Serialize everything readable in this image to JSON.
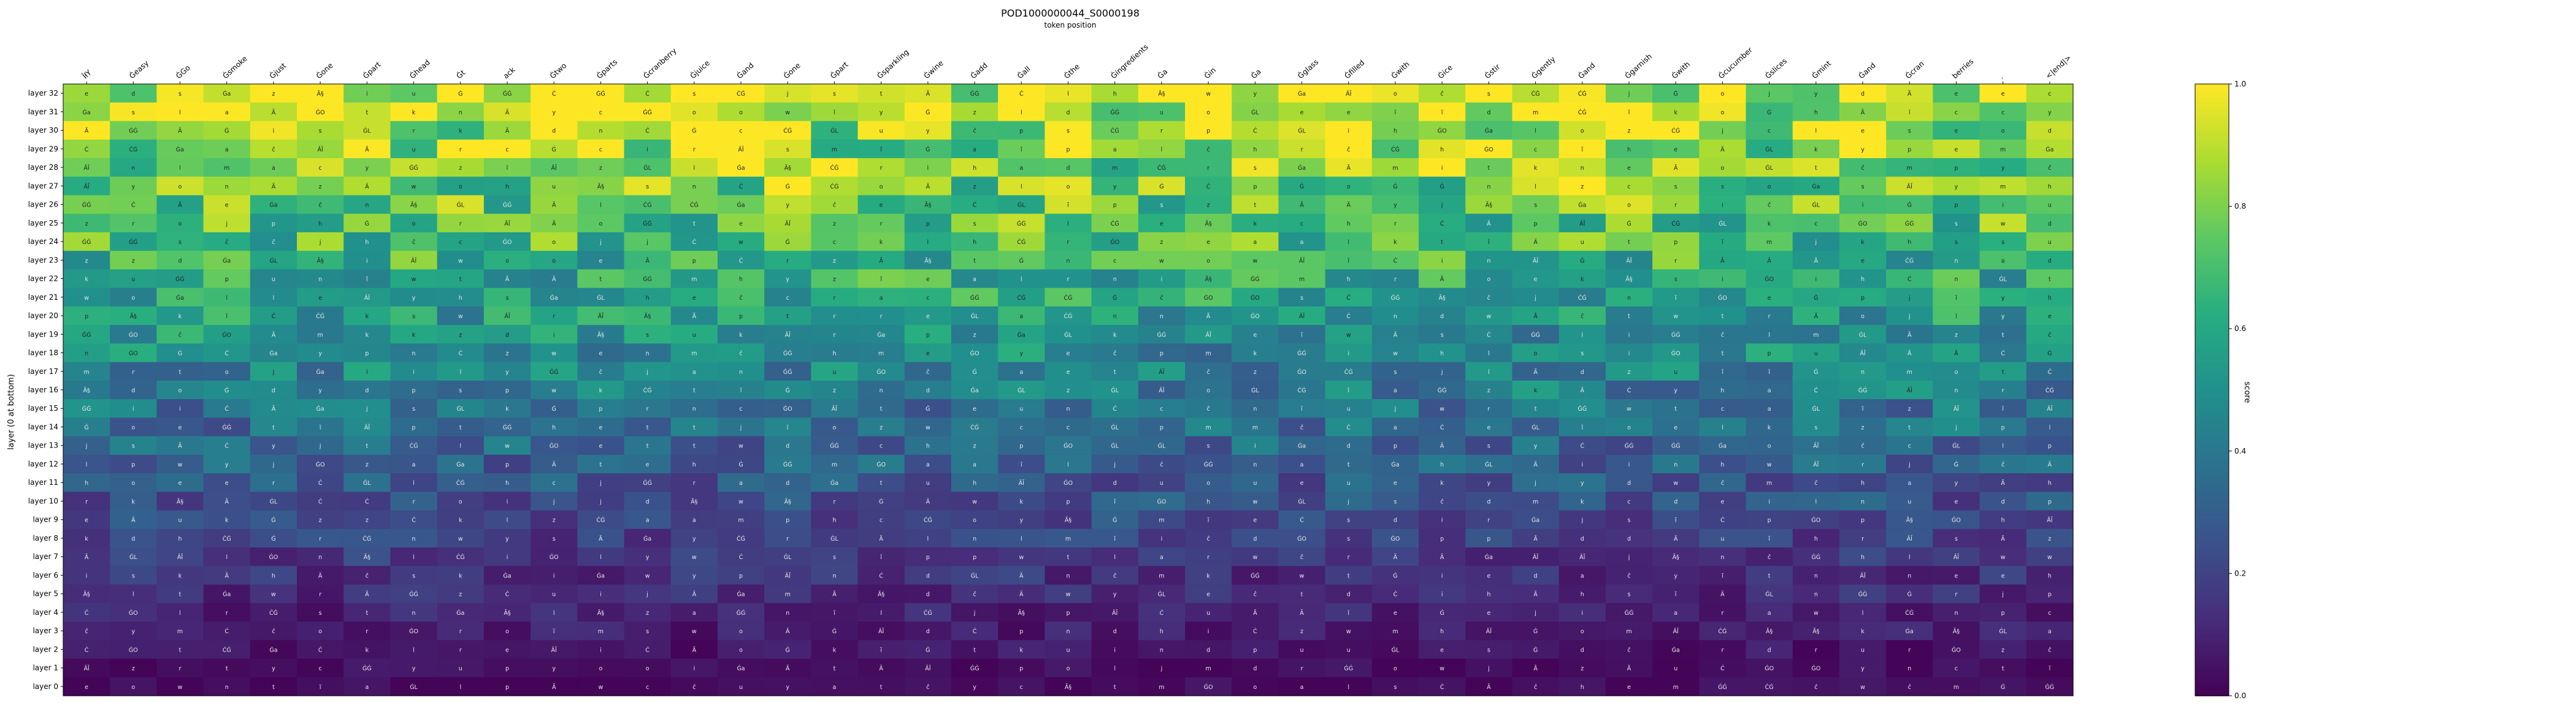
{
  "chart_data": {
    "type": "heatmap",
    "title": "POD1000000044_S0000198",
    "xlabel": "token position",
    "ylabel": "layer (0 at bottom)",
    "colorbar_label": "score",
    "colormap": "viridis",
    "zlim": [
      0,
      1
    ],
    "colorbar_ticks": [
      "0.0",
      "0.2",
      "0.4",
      "0.6",
      "0.8",
      "1.0"
    ],
    "tokens": [
      "ÎłY",
      "Ġeasy",
      "ĠGo",
      "Ġsmoke",
      "Ġjust",
      "Ġone",
      "Ġpart",
      "Ġhead",
      "Ġt",
      "ack",
      "Ġtwo",
      "Ġparts",
      "Ġcranberry",
      "Ġjuice",
      "Ġand",
      "Ġone",
      "Ġpart",
      "Ġsparkling",
      "Ġwine",
      "Ġadd",
      "Ġall",
      "Ġthe",
      "Ġingredients",
      "Ġa",
      "Ġin",
      "Ġa",
      "Ġglass",
      "Ġfilled",
      "Ġwith",
      "Ġice",
      "Ġstir",
      "Ġgently",
      "Ġand",
      "Ġgarnish",
      "Ġwith",
      "Ġcucumber",
      "Ġslices",
      "Ġmint",
      "Ġand",
      "Ġcran",
      "berries",
      ".",
      "<|end|>"
    ],
    "layers": [
      "layer 32",
      "layer 31",
      "layer 30",
      "layer 29",
      "layer 28",
      "layer 27",
      "layer 26",
      "layer 25",
      "layer 24",
      "layer 23",
      "layer 22",
      "layer 21",
      "layer 20",
      "layer 19",
      "layer 18",
      "layer 17",
      "layer 16",
      "layer 15",
      "layer 14",
      "layer 13",
      "layer 12",
      "layer 11",
      "layer 10",
      "layer 9",
      "layer 8",
      "layer 7",
      "layer 6",
      "layer 5",
      "layer 4",
      "layer 3",
      "layer 2",
      "layer 1",
      "layer 0"
    ],
    "cell_label_pool": [
      "ĠL",
      "Ä",
      "ÂĬ",
      "Ã",
      "Ġ",
      "Ċ",
      "ĊĠ",
      "Ġa",
      "ĠĠ",
      "Ã§",
      "e",
      "t",
      "s",
      "o",
      "m",
      "n",
      "i",
      "k",
      "h",
      "l",
      "w",
      "c",
      "j",
      "p",
      "z",
      "u",
      "d",
      "r",
      "a",
      "y",
      "ĠO",
      "ĉ",
      "ĩ"
    ],
    "note_values": "cell values are estimated scores 0-1 read from the color of each cell; layer 0 lowest (~0.03), rising toward ~0.9-1.0 in the upper layers",
    "grid": false,
    "legend": "none"
  }
}
